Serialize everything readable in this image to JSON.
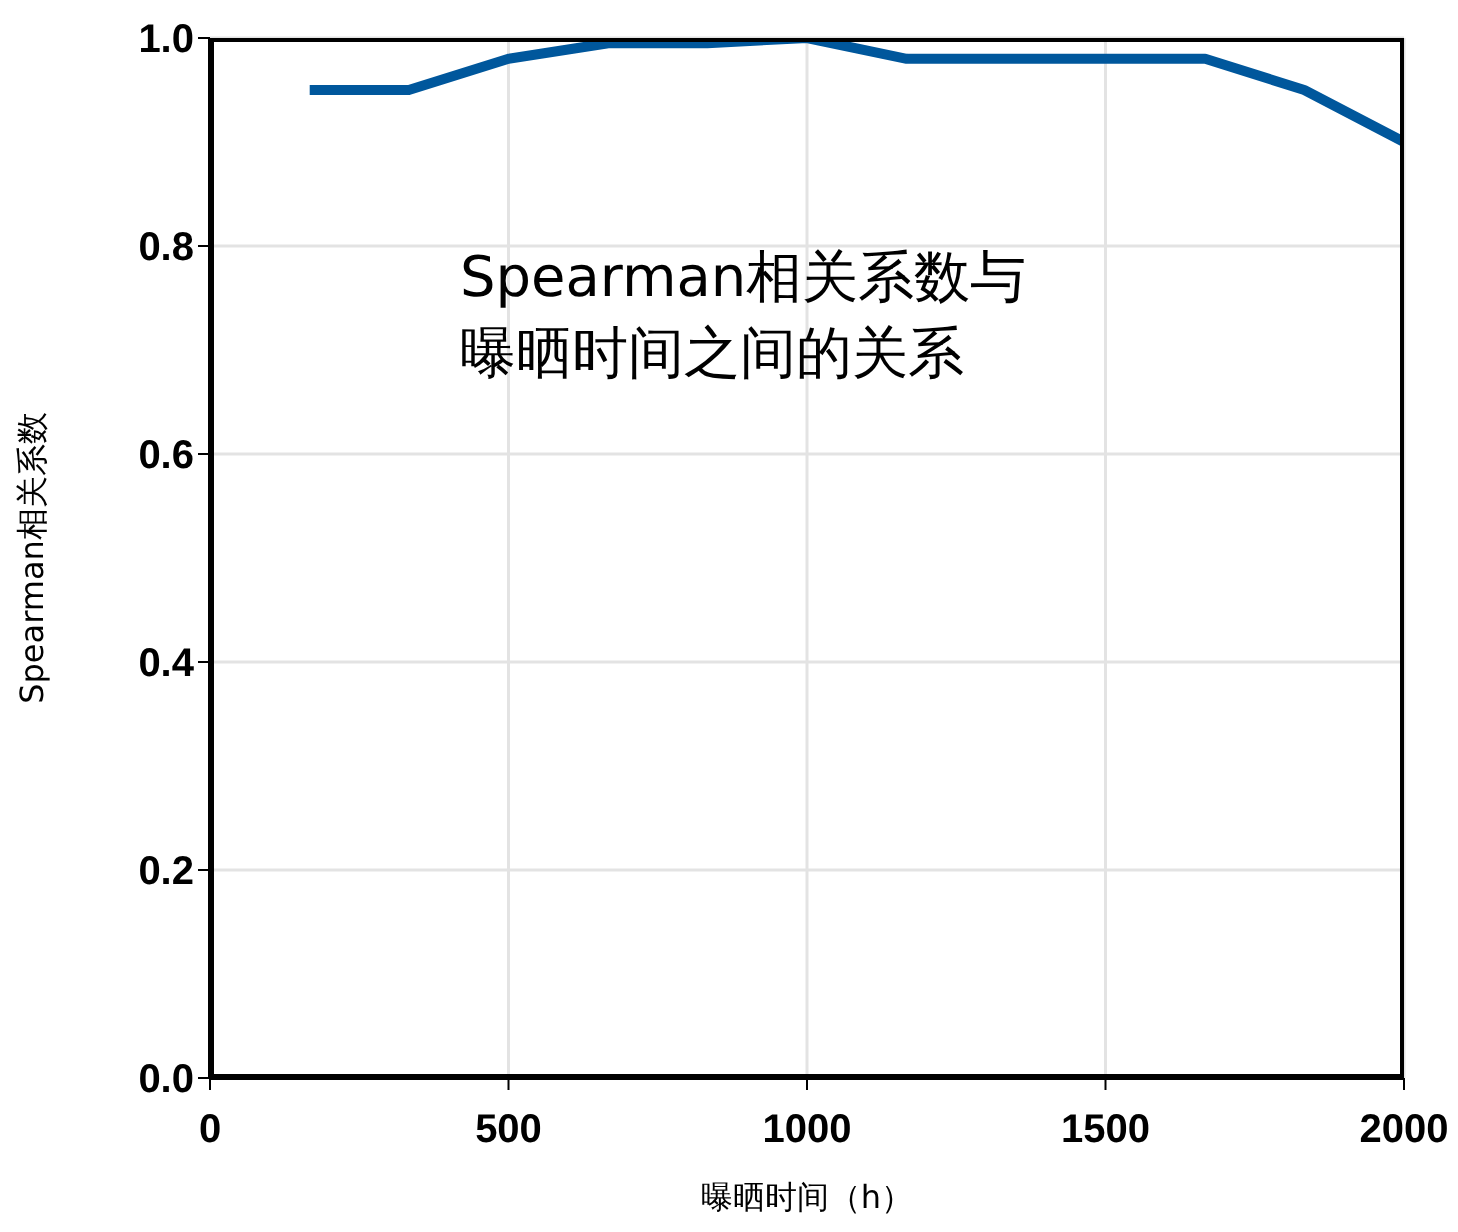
{
  "chart_data": {
    "type": "line",
    "xlabel": "曝晒时间（h）",
    "ylabel": "Spearman相关系数",
    "annotations": [
      "Spearman相关系数与曝晒时间之间的关系"
    ],
    "x": [
      167,
      333,
      500,
      667,
      833,
      1000,
      1167,
      1333,
      1500,
      1667,
      1833,
      2000
    ],
    "series": [
      {
        "color": "#00579c",
        "values": [
          0.95,
          0.95,
          0.98,
          0.995,
          0.995,
          1.0,
          0.98,
          0.98,
          0.98,
          0.98,
          0.95,
          0.9
        ]
      }
    ],
    "xlim": [
      0,
      2000
    ],
    "xticks": [
      0,
      500,
      1000,
      1500,
      2000
    ],
    "ylim": [
      0,
      1
    ],
    "yticks": [
      {
        "value": 0,
        "label": "0.0"
      },
      {
        "value": 0.2,
        "label": "0.2"
      },
      {
        "value": 0.4,
        "label": "0.4"
      },
      {
        "value": 0.6,
        "label": "0.6"
      },
      {
        "value": 0.8,
        "label": "0.8"
      },
      {
        "value": 1,
        "label": "1.0"
      }
    ],
    "grid": true,
    "line_style": "solid",
    "marker": "none"
  }
}
